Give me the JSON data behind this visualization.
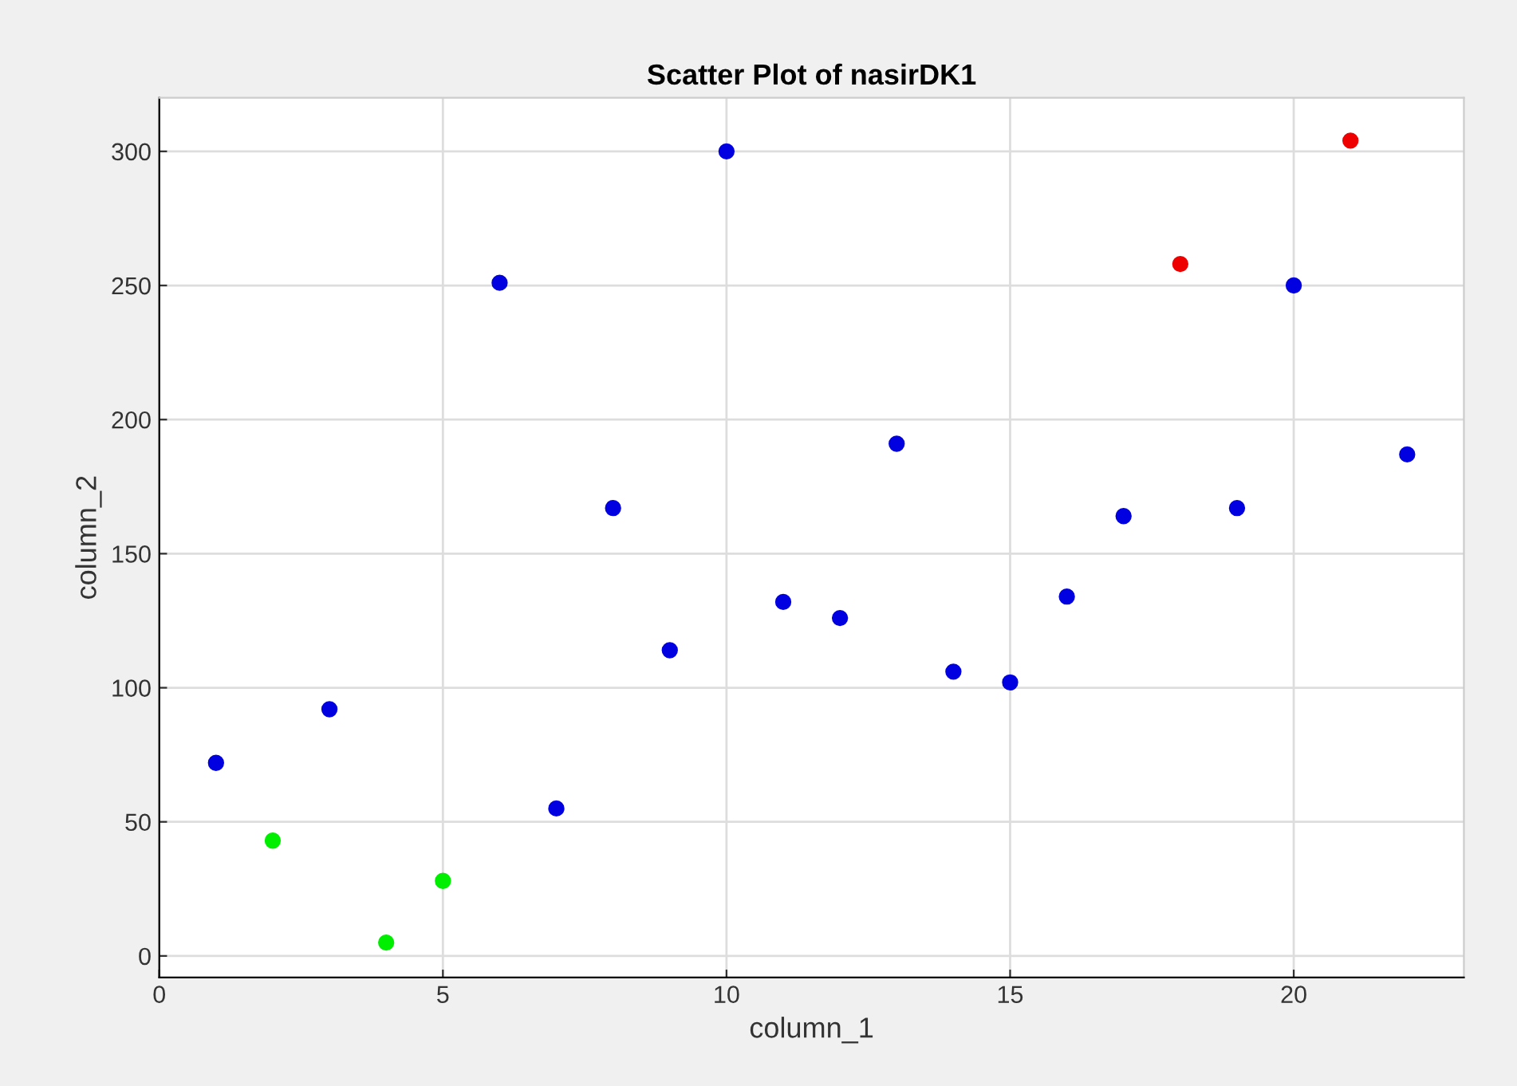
{
  "chart_data": {
    "type": "scatter",
    "title": "Scatter Plot of nasirDK1",
    "xlabel": "column_1",
    "ylabel": "column_2",
    "series": [
      {
        "color": "#0000e0",
        "x": [
          1,
          3,
          6,
          7,
          8,
          9,
          10,
          11,
          12,
          13,
          14,
          15,
          16,
          17,
          19,
          20,
          22
        ],
        "values": [
          72,
          92,
          251,
          55,
          167,
          114,
          300,
          132,
          126,
          191,
          106,
          102,
          134,
          164,
          167,
          250,
          187
        ]
      },
      {
        "color": "#00ee00",
        "x": [
          2,
          4,
          5
        ],
        "values": [
          43,
          5,
          28
        ]
      },
      {
        "color": "#ee0000",
        "x": [
          18,
          21
        ],
        "values": [
          258,
          304
        ]
      }
    ],
    "xlim": [
      0,
      23
    ],
    "ylim": [
      -8,
      320
    ],
    "xticks": [
      0,
      5,
      10,
      15,
      20
    ],
    "yticks": [
      0,
      50,
      100,
      150,
      200,
      250,
      300
    ],
    "grid": true,
    "marker": "circle"
  }
}
